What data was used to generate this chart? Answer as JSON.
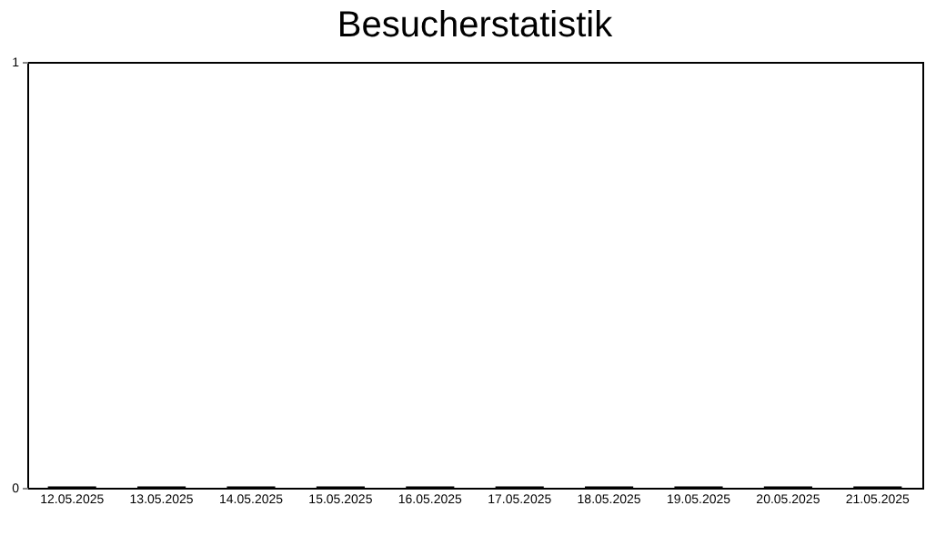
{
  "chart_data": {
    "type": "bar",
    "title": "Besucherstatistik",
    "categories": [
      "12.05.2025",
      "13.05.2025",
      "14.05.2025",
      "15.05.2025",
      "16.05.2025",
      "17.05.2025",
      "18.05.2025",
      "19.05.2025",
      "20.05.2025",
      "21.05.2025"
    ],
    "values": [
      0,
      0,
      0,
      0,
      0,
      0,
      0,
      0,
      0,
      0
    ],
    "color": "#000000",
    "ylim": [
      0,
      1
    ],
    "yticks": [
      0,
      1
    ],
    "grid": false
  }
}
